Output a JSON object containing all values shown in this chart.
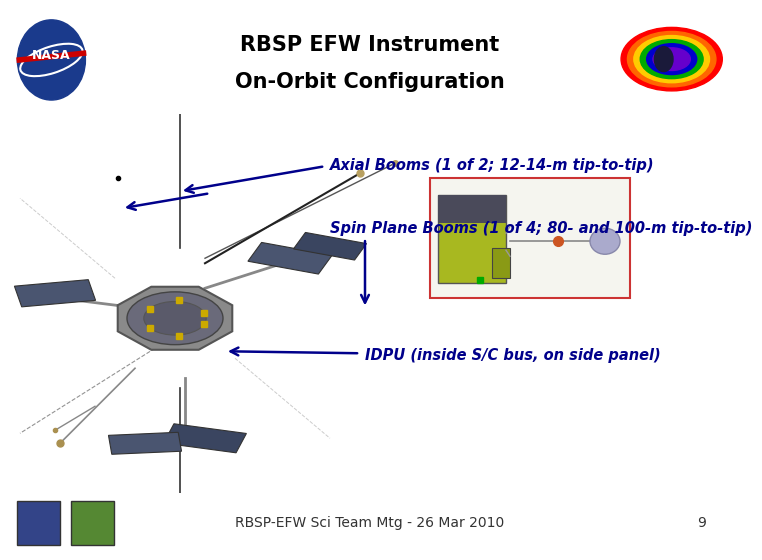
{
  "title_line1": "RBSP EFW Instrument",
  "title_line2": "On-Orbit Configuration",
  "title_fontsize": 15,
  "title_color": "#000000",
  "title_weight": "bold",
  "separator_color": "#1a3a6b",
  "label_axial": "Axial Booms (1 of 2; 12-14-m tip-to-tip)",
  "label_spin": "Spin Plane Booms (1 of 4; 80- and 100-m tip-to-tip)",
  "label_idpu": "IDPU (inside S/C bus, on side panel)",
  "label_color": "#00008B",
  "label_fontsize": 10.5,
  "arrow_color": "#00008B",
  "footer_text": "RBSP-EFW Sci Team Mtg - 26 Mar 2010",
  "footer_fontsize": 10,
  "page_number": "9",
  "content_bg": "#ffffff",
  "header_bg": "#ffffff",
  "footer_bg": "#ffffff"
}
